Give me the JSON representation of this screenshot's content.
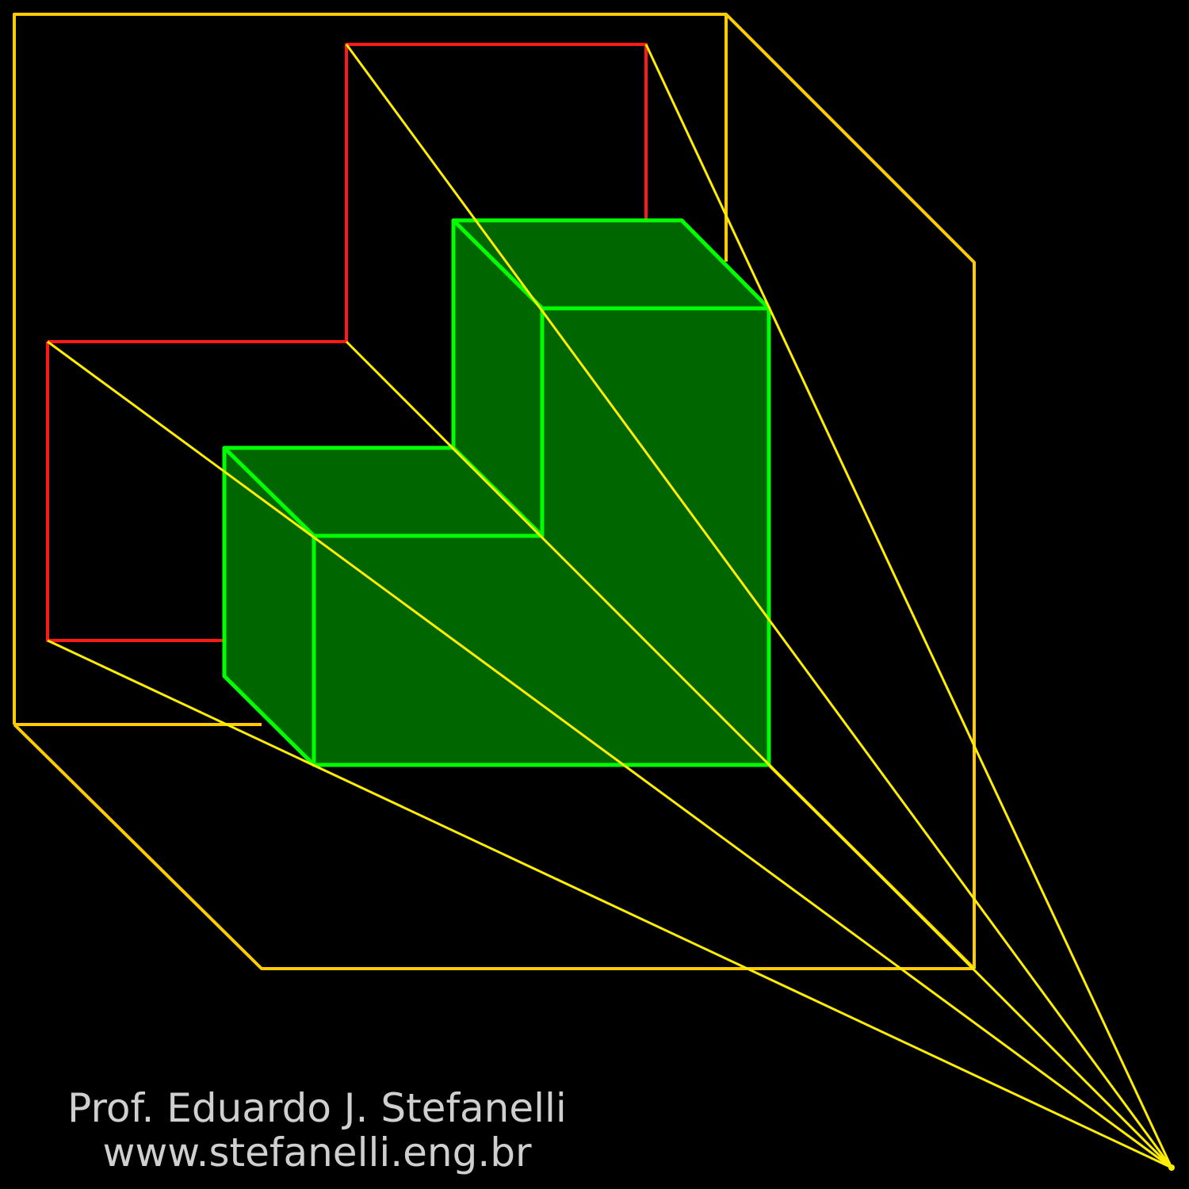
{
  "credit": {
    "author": "Prof. Eduardo J. Stefanelli",
    "website": "www.stefanelli.eng.br"
  },
  "colors": {
    "background": "#000000",
    "frame": "#ffcc00",
    "projection_lines": "#ffee00",
    "projected_view": "#ff1a1a",
    "solid_edges": "#00ff00",
    "solid_fill": "#006600",
    "credit_text": "#cfcfcf"
  },
  "elements": {
    "frame_box": "frame",
    "projected_view": "L-shaped outline",
    "solid": "L-shaped solid",
    "projection_lines": 6,
    "vanishing_point": "point"
  }
}
